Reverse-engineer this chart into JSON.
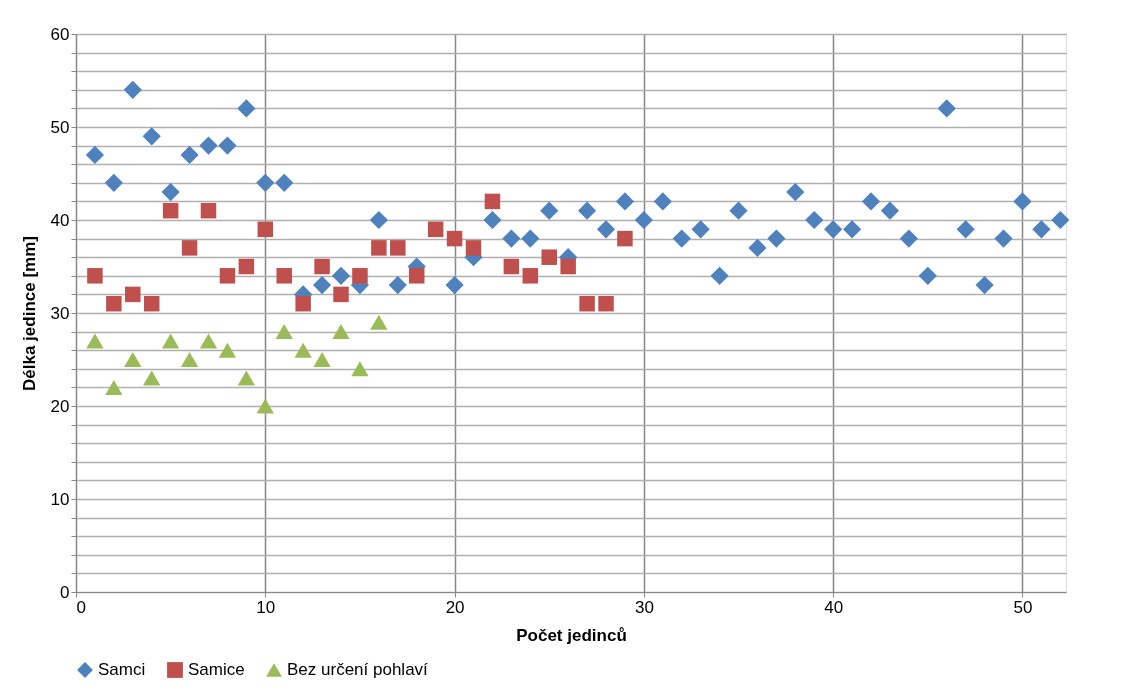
{
  "chart_data": {
    "type": "scatter",
    "xlabel": "Počet jedinců",
    "ylabel": "Délka jedince [mm]",
    "xlim": [
      0,
      52.3
    ],
    "xticks": [
      0,
      10,
      20,
      30,
      40,
      50
    ],
    "ylim": [
      0,
      60
    ],
    "yticks": [
      0,
      {
        "value": 2,
        "label": null
      },
      {
        "value": 4,
        "label": null
      },
      {
        "value": 6,
        "label": null
      },
      {
        "value": 8,
        "label": null
      },
      10,
      {
        "value": 12,
        "label": null
      },
      {
        "value": 14,
        "label": null
      },
      {
        "value": 16,
        "label": null
      },
      {
        "value": 18,
        "label": null
      },
      20,
      {
        "value": 22,
        "label": null
      },
      {
        "value": 24,
        "label": null
      },
      {
        "value": 26,
        "label": null
      },
      {
        "value": 28,
        "label": null
      },
      30,
      {
        "value": 32,
        "label": null
      },
      {
        "value": 34,
        "label": null
      },
      {
        "value": 36,
        "label": null
      },
      {
        "value": 38,
        "label": null
      },
      40,
      {
        "value": 42,
        "label": null
      },
      {
        "value": 44,
        "label": null
      },
      {
        "value": 46,
        "label": null
      },
      {
        "value": 48,
        "label": null
      },
      50,
      {
        "value": 52,
        "label": null
      },
      {
        "value": 54,
        "label": null
      },
      {
        "value": 56,
        "label": null
      },
      {
        "value": 58,
        "label": null
      },
      60
    ],
    "grid": true,
    "legend": "bottom",
    "series": [
      {
        "name": "Samci",
        "color": "#4f81bd",
        "marker": "diamond",
        "x": [
          1,
          2,
          3,
          4,
          5,
          6,
          7,
          8,
          9,
          10,
          11,
          12,
          13,
          14,
          15,
          16,
          17,
          18,
          19,
          20,
          21,
          22,
          23,
          24,
          25,
          26,
          27,
          28,
          29,
          30,
          31,
          32,
          33,
          34,
          35,
          36,
          37,
          38,
          39,
          40,
          41,
          42,
          43,
          44,
          45,
          46,
          47,
          48,
          49,
          50,
          51,
          52
        ],
        "values": [
          47,
          44,
          54,
          49,
          43,
          47,
          48,
          48,
          52,
          44,
          44,
          32,
          33,
          34,
          33,
          40,
          33,
          35,
          null,
          33,
          36,
          40,
          38,
          38,
          41,
          36,
          41,
          39,
          42,
          40,
          42,
          38,
          39,
          34,
          41,
          37,
          38,
          43,
          40,
          39,
          39,
          42,
          41,
          38,
          34,
          52,
          39,
          33,
          38,
          42,
          39,
          40
        ]
      },
      {
        "name": "Samice",
        "color": "#c0504d",
        "marker": "square",
        "x": [
          1,
          2,
          3,
          4,
          5,
          6,
          7,
          8,
          9,
          10,
          11,
          12,
          13,
          14,
          15,
          16,
          17,
          18,
          19,
          20,
          21,
          22,
          23,
          24,
          25,
          26,
          27,
          28,
          29
        ],
        "values": [
          34,
          31,
          32,
          31,
          41,
          37,
          41,
          34,
          35,
          39,
          34,
          31,
          35,
          32,
          34,
          37,
          37,
          34,
          39,
          38,
          37,
          42,
          35,
          34,
          36,
          35,
          31,
          31,
          38
        ]
      },
      {
        "name": "Bez určení pohlaví",
        "color": "#9bbb59",
        "marker": "triangle",
        "x": [
          1,
          2,
          3,
          4,
          5,
          6,
          7,
          8,
          9,
          10,
          11,
          12,
          13,
          14,
          15,
          16
        ],
        "values": [
          27,
          22,
          25,
          23,
          27,
          25,
          27,
          26,
          23,
          20,
          28,
          26,
          25,
          28,
          24,
          29
        ]
      }
    ]
  }
}
